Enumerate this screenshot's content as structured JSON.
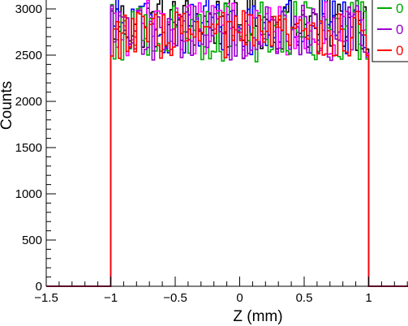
{
  "chart_data": {
    "type": "histogram",
    "title": "",
    "xlabel": "Z (mm)",
    "ylabel": "Counts",
    "xlim": [
      -1.5,
      1.5
    ],
    "ylim": [
      0,
      3150
    ],
    "x_ticks": [
      -1.5,
      -1,
      -0.5,
      0,
      0.5,
      1
    ],
    "x_tick_labels": [
      "−1.5",
      "−1",
      "−0.5",
      "0",
      "0.5",
      "1"
    ],
    "y_ticks": [
      0,
      500,
      1000,
      1500,
      2000,
      2500,
      3000
    ],
    "y_tick_labels": [
      "0",
      "500",
      "1000",
      "1500",
      "2000",
      "2500",
      "3000"
    ],
    "grid": false,
    "bin_width": 0.02,
    "signal_range": [
      -1,
      1
    ],
    "legend_position": "top-right",
    "series": [
      {
        "name": "",
        "color": "#000000",
        "level": 2850,
        "spread": 300
      },
      {
        "name": "",
        "color": "#0000ff",
        "level": 2820,
        "spread": 320
      },
      {
        "name": "",
        "color": "#ff00ff",
        "level": 2790,
        "spread": 300
      },
      {
        "name": "",
        "color": "#00aa00",
        "level": 2760,
        "spread": 340
      },
      {
        "name": "",
        "color": "#9900cc",
        "level": 2740,
        "spread": 300
      },
      {
        "name": "",
        "color": "#ff0000",
        "level": 2720,
        "spread": 260
      }
    ],
    "legend": [
      {
        "label": "0",
        "color": "#00aa00"
      },
      {
        "label": "0",
        "color": "#9900cc"
      },
      {
        "label": "0",
        "color": "#ff0000"
      }
    ]
  }
}
